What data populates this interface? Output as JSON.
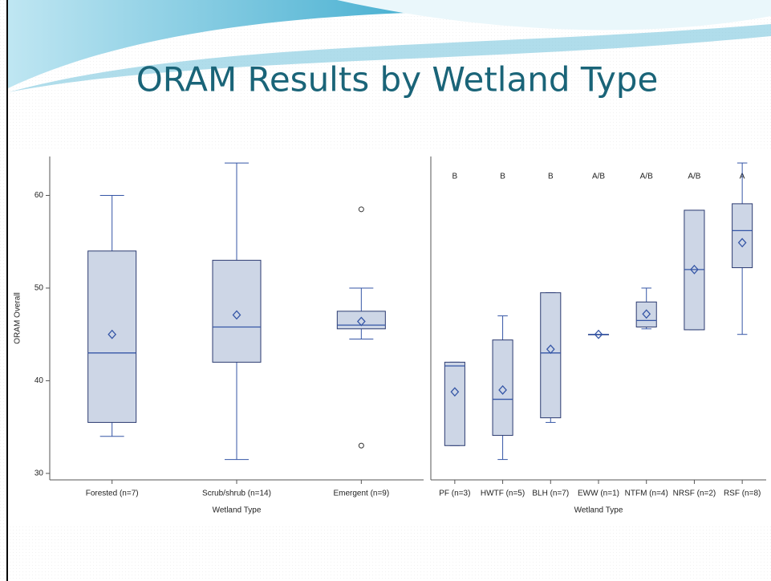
{
  "title": "ORAM Results by Wetland Type",
  "chart_data": [
    {
      "type": "box",
      "ylabel": "ORAM Overall",
      "xlabel": "Wetland Type",
      "categories": [
        "Forested (n=7)",
        "Scrub/shrub (n=14)",
        "Emergent (n=9)"
      ],
      "min": [
        34,
        31.5,
        44.5
      ],
      "q1": [
        35.5,
        42,
        45.6
      ],
      "median": [
        43,
        45.8,
        46
      ],
      "q3": [
        54,
        53,
        47.5
      ],
      "max": [
        60,
        63.5,
        50
      ],
      "mean": [
        45,
        47.1,
        46.4
      ],
      "outliers": [
        [],
        [],
        [
          58.5,
          33
        ]
      ],
      "ylim": [
        29.3,
        64.2
      ],
      "yticks": [
        30,
        40,
        50,
        60
      ],
      "color": "#3556a6",
      "box_color": "#cdd6e6"
    },
    {
      "type": "box",
      "xlabel": "Wetland Type",
      "categories": [
        "PF (n=3)",
        "HWTF (n=5)",
        "BLH (n=7)",
        "EWW (n=1)",
        "NTFM (n=4)",
        "NRSF (n=2)",
        "RSF (n=8)"
      ],
      "letters": [
        "B",
        "B",
        "B",
        "A/B",
        "A/B",
        "A/B",
        "A"
      ],
      "min": [
        33,
        31.5,
        35.5,
        45,
        45.6,
        45.5,
        45
      ],
      "q1": [
        33,
        34.1,
        36,
        45,
        45.8,
        45.5,
        52.2
      ],
      "median": [
        41.6,
        38,
        43,
        45,
        46.5,
        52,
        56.2
      ],
      "q3": [
        42,
        44.4,
        49.5,
        45,
        48.5,
        58.4,
        59.1
      ],
      "max": [
        42,
        47,
        49.5,
        45,
        50,
        58.4,
        63.5
      ],
      "mean": [
        38.8,
        39,
        43.4,
        45,
        47.2,
        52,
        54.9
      ],
      "ylim": [
        29.3,
        64.2
      ],
      "color": "#3556a6",
      "box_color": "#cdd6e6"
    }
  ]
}
